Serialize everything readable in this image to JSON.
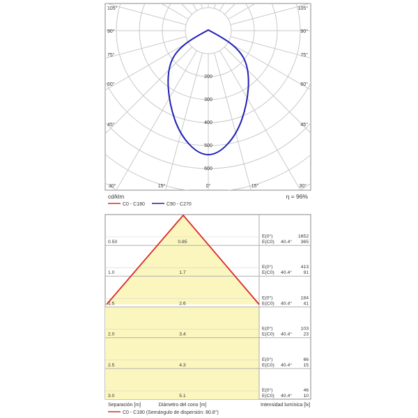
{
  "polar": {
    "angle_labels_left": [
      "105°",
      "90°",
      "75°",
      "60°",
      "45°",
      "30°"
    ],
    "angle_labels_right": [
      "105°",
      "90°",
      "75°",
      "60°",
      "45°",
      "30°"
    ],
    "bottom_labels": [
      "15°",
      "0°",
      "15°"
    ],
    "radial_labels": [
      "200",
      "300",
      "400",
      "500",
      "600"
    ],
    "unit": "cd/klm",
    "efficiency": "η = 96%",
    "legend": [
      {
        "name": "C0 - C180",
        "color": "#d92a2a"
      },
      {
        "name": "C90 - C270",
        "color": "#1f1fb4"
      }
    ]
  },
  "cone": {
    "rows": [
      {
        "separation": "0.50",
        "diameter": "0.85",
        "e0_label": "E(0°)",
        "ec0_label": "E(C0)",
        "angle": "40.4°",
        "e0": "1652",
        "ec0": "365"
      },
      {
        "separation": "1.0",
        "diameter": "1.7",
        "e0_label": "E(0°)",
        "ec0_label": "E(C0)",
        "angle": "40.4°",
        "e0": "413",
        "ec0": "91"
      },
      {
        "separation": "1.5",
        "diameter": "2.6",
        "e0_label": "E(0°)",
        "ec0_label": "E(C0)",
        "angle": "40.4°",
        "e0": "184",
        "ec0": "41"
      },
      {
        "separation": "2.0",
        "diameter": "3.4",
        "e0_label": "E(0°)",
        "ec0_label": "E(C0)",
        "angle": "40.4°",
        "e0": "103",
        "ec0": "23"
      },
      {
        "separation": "2.5",
        "diameter": "4.3",
        "e0_label": "E(0°)",
        "ec0_label": "E(C0)",
        "angle": "40.4°",
        "e0": "66",
        "ec0": "15"
      },
      {
        "separation": "3.0",
        "diameter": "5.1",
        "e0_label": "E(0°)",
        "ec0_label": "E(C0)",
        "angle": "40.4°",
        "e0": "46",
        "ec0": "10"
      }
    ],
    "footer": {
      "separation": "Separación [m]",
      "diameter": "Diámetro del cono [m]",
      "intensity": "Intensidad lumínica [lx]"
    },
    "legend_text": "C0 - C180 (Semángulo de dispersión: 80.8°)",
    "line_color": "#d92a2a",
    "fill_color": "#fbf6bd"
  }
}
